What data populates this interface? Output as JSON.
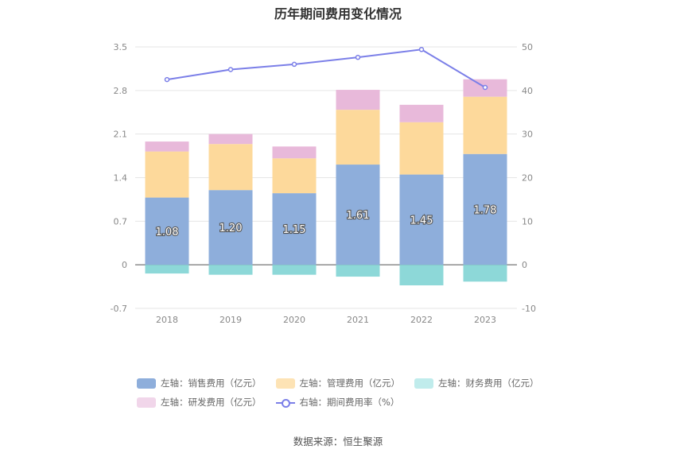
{
  "chart_data": {
    "type": "bar",
    "title": "历年期间费用变化情况",
    "categories": [
      "2018",
      "2019",
      "2020",
      "2021",
      "2022",
      "2023"
    ],
    "left_axis": {
      "ticks": [
        "3.5",
        "2.8",
        "2.1",
        "1.4",
        "0.7",
        "0",
        "-0.7"
      ],
      "ylim": [
        -0.7,
        3.5
      ]
    },
    "right_axis": {
      "ticks": [
        "50",
        "40",
        "30",
        "20",
        "10",
        "0",
        "-10"
      ],
      "ylim": [
        -10,
        50
      ]
    },
    "series": [
      {
        "name": "左轴：销售费用（亿元）",
        "type": "bar",
        "stack": "pos",
        "color": "#8eaedb",
        "values": [
          1.08,
          1.2,
          1.15,
          1.61,
          1.45,
          1.78
        ],
        "labels": [
          "1.08",
          "1.20",
          "1.15",
          "1.61",
          "1.45",
          "1.78"
        ]
      },
      {
        "name": "左轴：管理费用（亿元）",
        "type": "bar",
        "stack": "pos",
        "color": "#fdd99b",
        "values": [
          0.74,
          0.74,
          0.56,
          0.88,
          0.84,
          0.92
        ]
      },
      {
        "name": "左轴：财务费用（亿元）",
        "type": "bar",
        "stack": "neg",
        "color": "#8dd8d8",
        "values": [
          -0.14,
          -0.16,
          -0.16,
          -0.19,
          -0.33,
          -0.27
        ]
      },
      {
        "name": "左轴：研发费用（亿元）",
        "type": "bar",
        "stack": "pos",
        "color": "#e8b9da",
        "values": [
          0.16,
          0.16,
          0.19,
          0.32,
          0.28,
          0.28
        ]
      },
      {
        "name": "右轴：期间费用率（%）",
        "type": "line",
        "axis": "right",
        "color": "#7b7fe8",
        "values": [
          42.5,
          44.8,
          46.0,
          47.6,
          49.4,
          40.7
        ]
      }
    ],
    "legend_position": "bottom",
    "grid": true
  },
  "legend": {
    "row1": [
      {
        "label": "左轴：销售费用（亿元）",
        "color": "#8eaedb"
      },
      {
        "label": "左轴：管理费用（亿元）",
        "color": "#fde3b5"
      },
      {
        "label": "左轴：财务费用（亿元）",
        "color": "#c0ecec"
      }
    ],
    "row2": [
      {
        "label": "左轴：研发费用（亿元）",
        "color": "#f1d6ea"
      },
      {
        "label": "右轴：期间费用率（%）",
        "color": "#7b7fe8"
      }
    ]
  },
  "source": "数据来源：恒生聚源"
}
